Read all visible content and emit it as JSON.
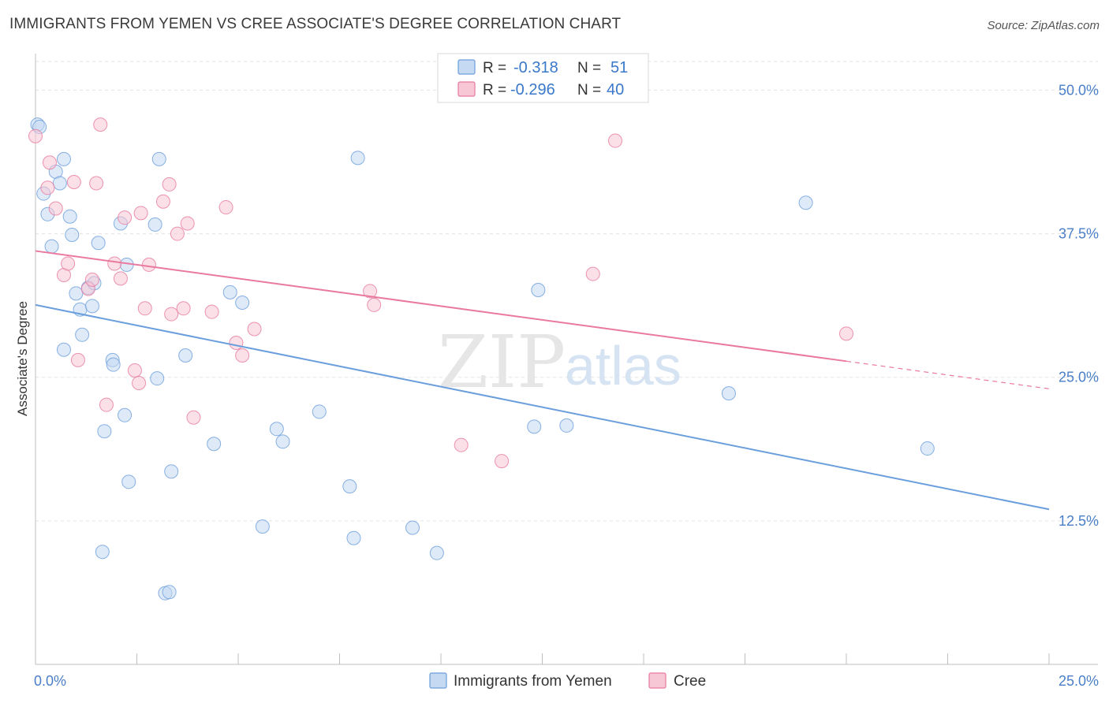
{
  "header": {
    "title": "IMMIGRANTS FROM YEMEN VS CREE ASSOCIATE'S DEGREE CORRELATION CHART",
    "source": "Source: ZipAtlas.com"
  },
  "watermark": {
    "zip": "ZIP",
    "atlas": "atlas"
  },
  "stats": [
    {
      "r_label": "R =",
      "r_value": "-0.318",
      "n_label": "N =",
      "n_value": "51",
      "color": "#a9c6ee"
    },
    {
      "r_label": "R =",
      "r_value": "-0.296",
      "n_label": "N =",
      "n_value": "40",
      "color": "#f5b8cb"
    }
  ],
  "chart_data": {
    "type": "scatter",
    "title": "IMMIGRANTS FROM YEMEN VS CREE ASSOCIATE'S DEGREE CORRELATION CHART",
    "xlabel": "",
    "ylabel": "Associate's Degree",
    "xlim": [
      0,
      25
    ],
    "ylim": [
      0,
      52.5
    ],
    "x_tick_labels": [
      {
        "value": 0,
        "label": "0.0%"
      },
      {
        "value": 25,
        "label": "25.0%"
      }
    ],
    "y_tick_labels": [
      {
        "value": 12.5,
        "label": "12.5%"
      },
      {
        "value": 25,
        "label": "25.0%"
      },
      {
        "value": 37.5,
        "label": "37.5%"
      },
      {
        "value": 50,
        "label": "50.0%"
      }
    ],
    "grid": true,
    "legend_position": "bottom-center",
    "series": [
      {
        "name": "Immigrants from Yemen",
        "color": "#6a9edc",
        "fill": "#c5d9f2",
        "trend": {
          "x": [
            0,
            25
          ],
          "y": [
            31.3,
            13.5
          ],
          "dashed_from": null
        },
        "points": [
          [
            0.05,
            47.0
          ],
          [
            0.1,
            46.8
          ],
          [
            0.2,
            41.0
          ],
          [
            0.3,
            39.2
          ],
          [
            0.4,
            36.4
          ],
          [
            0.5,
            42.9
          ],
          [
            0.6,
            41.9
          ],
          [
            0.7,
            44.0
          ],
          [
            0.7,
            27.4
          ],
          [
            0.85,
            39.0
          ],
          [
            0.9,
            37.4
          ],
          [
            1.0,
            32.3
          ],
          [
            1.1,
            30.9
          ],
          [
            1.15,
            28.7
          ],
          [
            1.3,
            32.8
          ],
          [
            1.4,
            31.2
          ],
          [
            1.45,
            33.2
          ],
          [
            1.55,
            36.7
          ],
          [
            1.7,
            20.3
          ],
          [
            1.9,
            26.5
          ],
          [
            1.92,
            26.1
          ],
          [
            2.1,
            38.4
          ],
          [
            2.2,
            21.7
          ],
          [
            2.25,
            34.8
          ],
          [
            2.3,
            15.9
          ],
          [
            1.65,
            9.8
          ],
          [
            2.95,
            38.3
          ],
          [
            3.0,
            24.9
          ],
          [
            3.05,
            44.0
          ],
          [
            3.2,
            6.2
          ],
          [
            3.3,
            6.3
          ],
          [
            3.35,
            16.8
          ],
          [
            3.7,
            26.9
          ],
          [
            4.4,
            19.2
          ],
          [
            4.8,
            32.4
          ],
          [
            5.1,
            31.5
          ],
          [
            5.6,
            12.0
          ],
          [
            5.95,
            20.5
          ],
          [
            6.1,
            19.4
          ],
          [
            7.0,
            22.0
          ],
          [
            7.75,
            15.5
          ],
          [
            7.85,
            11.0
          ],
          [
            7.95,
            44.1
          ],
          [
            9.3,
            11.9
          ],
          [
            9.9,
            9.7
          ],
          [
            12.3,
            20.7
          ],
          [
            12.4,
            32.6
          ],
          [
            13.1,
            20.8
          ],
          [
            17.1,
            23.6
          ],
          [
            19.0,
            40.2
          ],
          [
            22.0,
            18.8
          ]
        ]
      },
      {
        "name": "Cree",
        "color": "#e9799e",
        "fill": "#f7c7d6",
        "trend": {
          "x": [
            0,
            25
          ],
          "y": [
            36.0,
            24.0
          ],
          "dashed_from": 20.0
        },
        "points": [
          [
            0.0,
            46.0
          ],
          [
            0.3,
            41.5
          ],
          [
            0.35,
            43.7
          ],
          [
            0.5,
            39.7
          ],
          [
            0.7,
            33.9
          ],
          [
            0.8,
            34.9
          ],
          [
            0.95,
            42.0
          ],
          [
            1.05,
            26.5
          ],
          [
            1.3,
            32.7
          ],
          [
            1.4,
            33.5
          ],
          [
            1.5,
            41.9
          ],
          [
            1.6,
            47.0
          ],
          [
            1.75,
            22.6
          ],
          [
            1.95,
            34.9
          ],
          [
            2.1,
            33.6
          ],
          [
            2.2,
            38.9
          ],
          [
            2.45,
            25.6
          ],
          [
            2.55,
            24.5
          ],
          [
            2.6,
            39.3
          ],
          [
            2.7,
            31.0
          ],
          [
            2.8,
            34.8
          ],
          [
            3.15,
            40.3
          ],
          [
            3.3,
            41.8
          ],
          [
            3.35,
            30.5
          ],
          [
            3.5,
            37.5
          ],
          [
            3.65,
            31.0
          ],
          [
            3.75,
            38.4
          ],
          [
            3.9,
            21.5
          ],
          [
            4.35,
            30.7
          ],
          [
            4.7,
            39.8
          ],
          [
            4.95,
            28.0
          ],
          [
            5.1,
            26.9
          ],
          [
            5.4,
            29.2
          ],
          [
            8.25,
            32.5
          ],
          [
            8.35,
            31.3
          ],
          [
            10.5,
            19.1
          ],
          [
            11.5,
            17.7
          ],
          [
            13.75,
            34.0
          ],
          [
            14.3,
            45.6
          ],
          [
            20.0,
            28.8
          ]
        ]
      }
    ]
  }
}
